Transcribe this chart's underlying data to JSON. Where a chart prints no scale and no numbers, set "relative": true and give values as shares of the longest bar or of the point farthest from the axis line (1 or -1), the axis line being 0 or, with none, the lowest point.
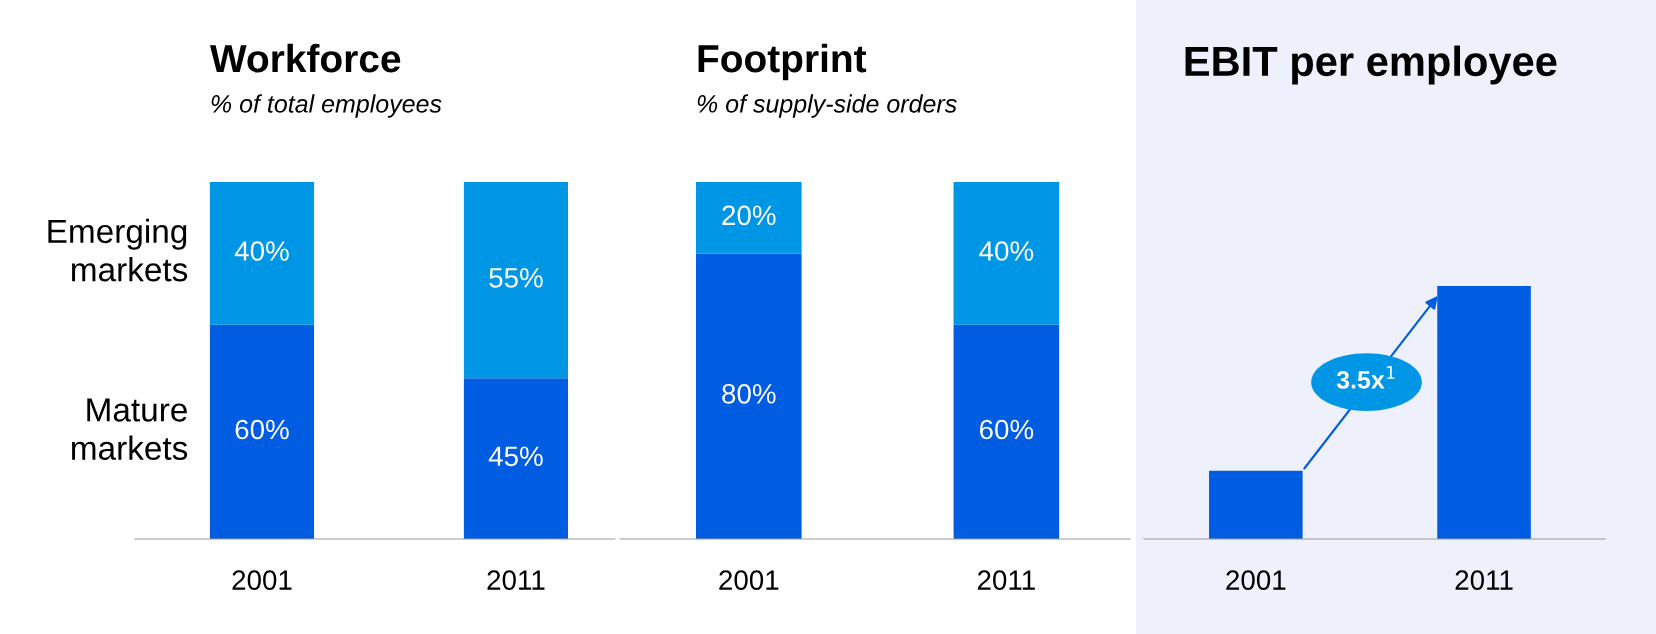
{
  "chart_data": [
    {
      "type": "bar",
      "title": "Workforce",
      "subtitle": "% of total employees",
      "categories": [
        "2001",
        "2011"
      ],
      "stacked": true,
      "ylim": [
        0,
        100
      ],
      "tick_labels": "x",
      "series": [
        {
          "name": "Mature markets",
          "color": "#005ce0",
          "values": [
            60,
            45
          ],
          "value_labels": [
            "60%",
            "45%"
          ]
        },
        {
          "name": "Emerging markets",
          "color": "#0096e6",
          "values": [
            40,
            55
          ],
          "value_labels": [
            "40%",
            "55%"
          ]
        }
      ]
    },
    {
      "type": "bar",
      "title": "Footprint",
      "subtitle": "% of supply-side orders",
      "categories": [
        "2001",
        "2011"
      ],
      "stacked": true,
      "ylim": [
        0,
        100
      ],
      "tick_labels": "x",
      "series": [
        {
          "color": "#005ce0",
          "values": [
            80,
            60
          ],
          "value_labels": [
            "80%",
            "60%"
          ]
        },
        {
          "color": "#0096e6",
          "values": [
            20,
            40
          ],
          "value_labels": [
            "20%",
            "40%"
          ]
        }
      ]
    },
    {
      "type": "bar",
      "title": "EBIT per employee",
      "categories": [
        "2001",
        "2011"
      ],
      "relative": true,
      "tick_labels": "x",
      "series": [
        {
          "color": "#005ce0",
          "values": [
            0.27,
            1
          ]
        }
      ],
      "annotations": [
        "3.5x$^{1}$"
      ]
    }
  ]
}
